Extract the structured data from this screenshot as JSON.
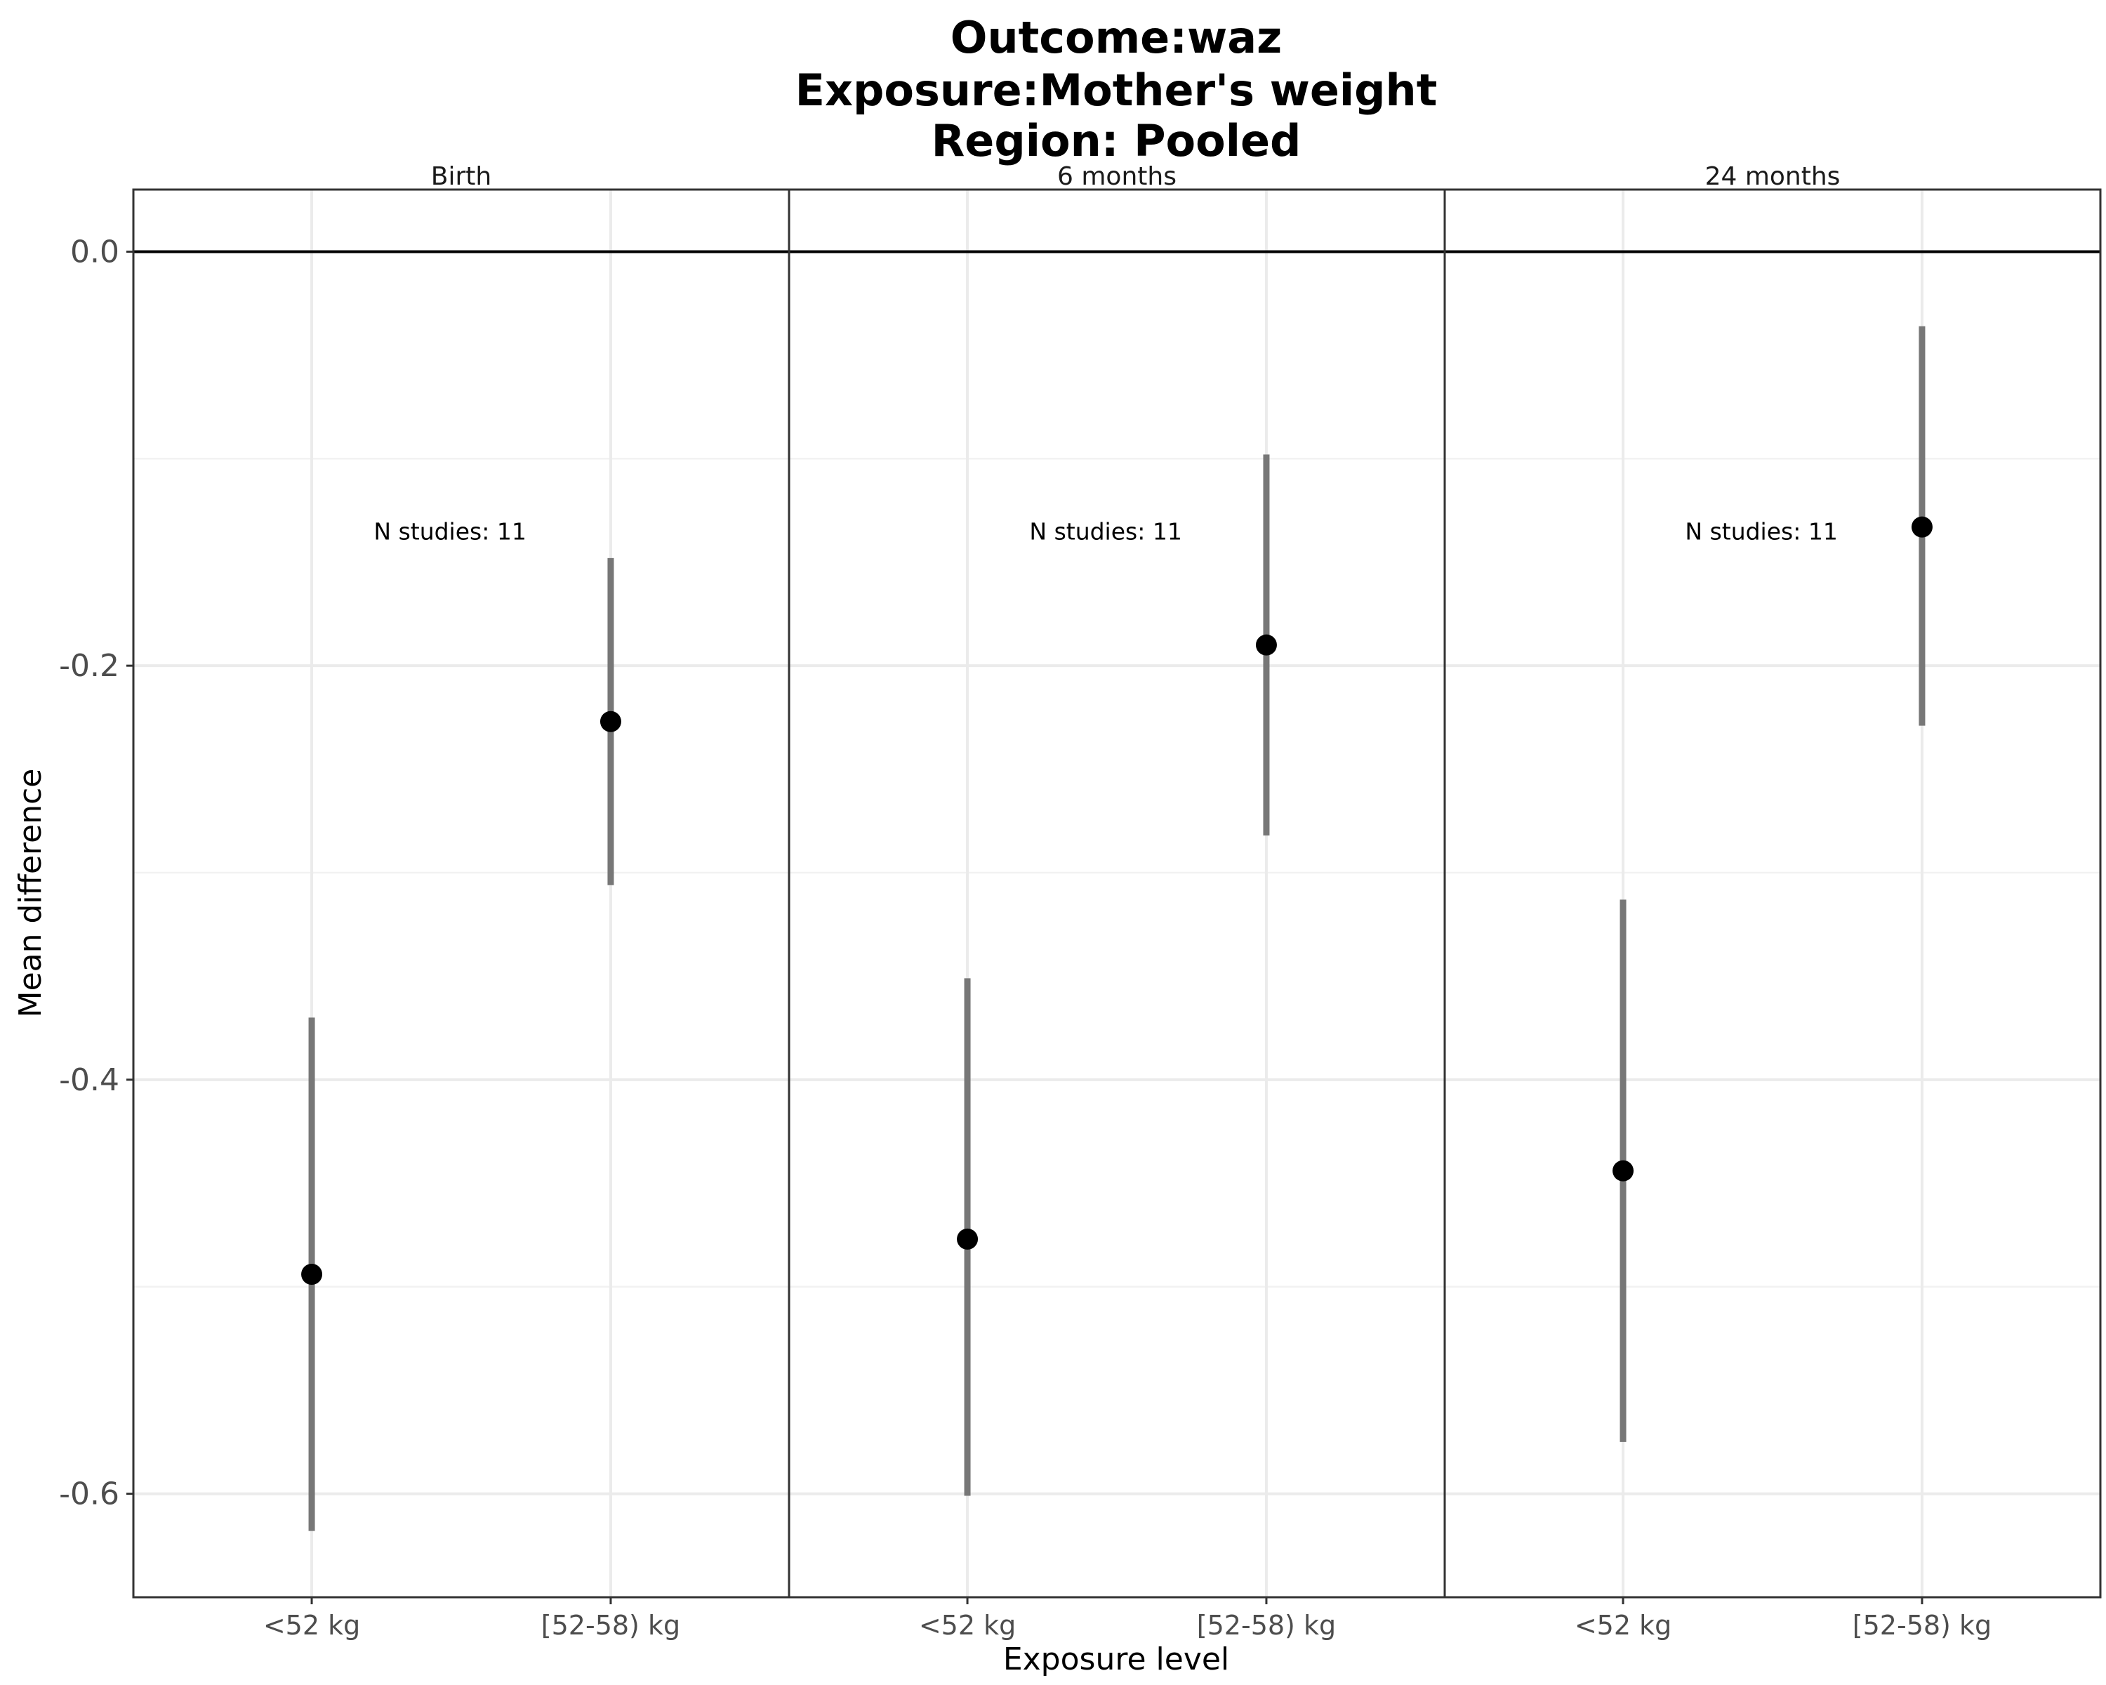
{
  "chart_data": {
    "type": "scatter",
    "title_lines": [
      "Outcome:waz",
      "Exposure:Mother's weight",
      "Region: Pooled"
    ],
    "xlabel": "Exposure level",
    "ylabel": "Mean difference",
    "categories": [
      "<52 kg",
      "[52-58) kg"
    ],
    "ylim": [
      -0.65,
      0.03
    ],
    "yticks": [
      0.0,
      -0.2,
      -0.4,
      -0.6
    ],
    "ytick_labels": [
      "0.0",
      "-0.2",
      "-0.4",
      "-0.6"
    ],
    "reference_line": 0.0,
    "grid": true,
    "colors": {
      "point": "#000000",
      "ci": "#777777",
      "zero_line": "#000000",
      "grid": "#ebebeb",
      "border": "#333333"
    },
    "panels": [
      {
        "label": "Birth",
        "annotation": "N studies: 11",
        "points": [
          {
            "x": "<52 kg",
            "y": -0.494,
            "lower": -0.618,
            "upper": -0.37
          },
          {
            "x": "[52-58) kg",
            "y": -0.227,
            "lower": -0.306,
            "upper": -0.148
          }
        ]
      },
      {
        "label": "6 months",
        "annotation": "N studies: 11",
        "points": [
          {
            "x": "<52 kg",
            "y": -0.477,
            "lower": -0.601,
            "upper": -0.351
          },
          {
            "x": "[52-58) kg",
            "y": -0.19,
            "lower": -0.282,
            "upper": -0.098
          }
        ]
      },
      {
        "label": "24 months",
        "annotation": "N studies: 11",
        "points": [
          {
            "x": "<52 kg",
            "y": -0.444,
            "lower": -0.575,
            "upper": -0.313
          },
          {
            "x": "[52-58) kg",
            "y": -0.133,
            "lower": -0.229,
            "upper": -0.036
          }
        ]
      }
    ]
  }
}
